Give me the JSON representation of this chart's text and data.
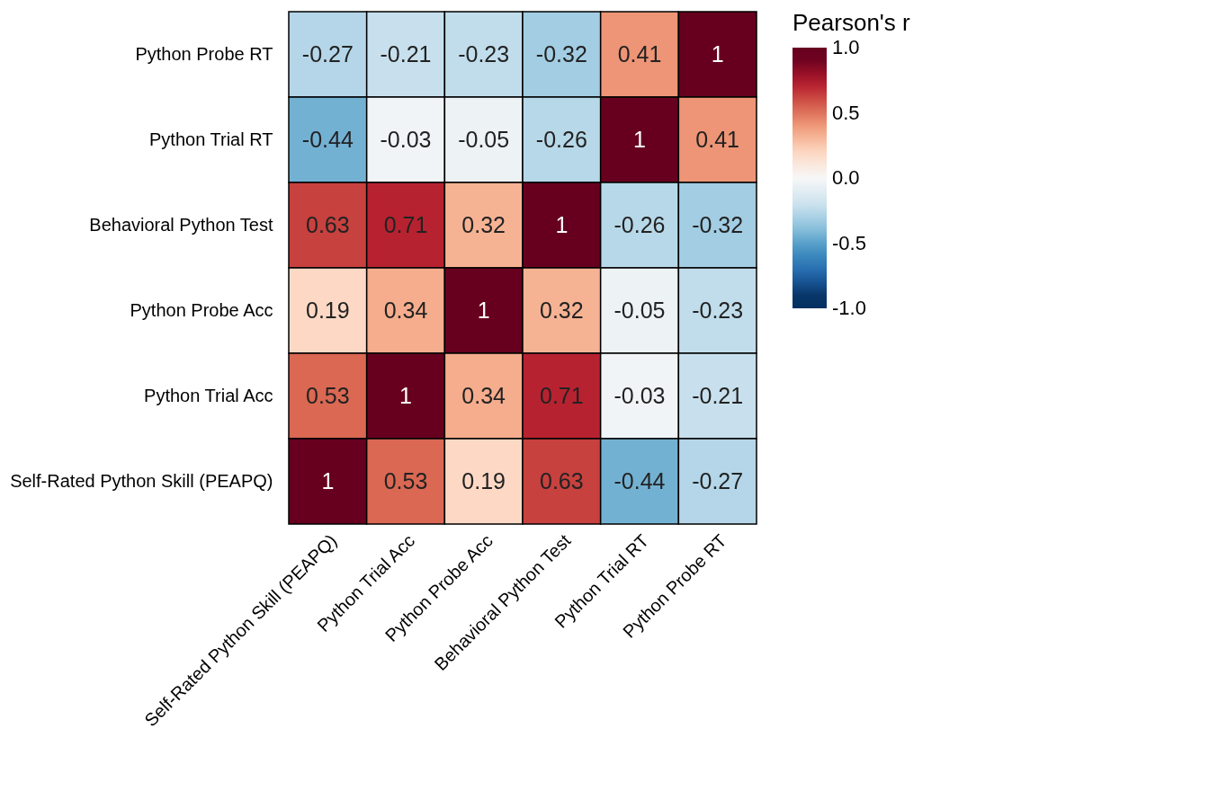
{
  "chart_data": {
    "type": "heatmap",
    "legend_title": "Pearson's r",
    "categories": [
      "Self-Rated Python Skill (PEAPQ)",
      "Python Trial Acc",
      "Python Probe Acc",
      "Behavioral Python Test",
      "Python Trial RT",
      "Python Probe RT"
    ],
    "y_categories": [
      "Python Probe RT",
      "Python Trial RT",
      "Behavioral Python Test",
      "Python Probe Acc",
      "Python Trial Acc",
      "Self-Rated Python Skill (PEAPQ)"
    ],
    "cells": [
      [
        -0.27,
        -0.21,
        -0.23,
        -0.32,
        0.41,
        1
      ],
      [
        -0.44,
        -0.03,
        -0.05,
        -0.26,
        1,
        0.41
      ],
      [
        0.63,
        0.71,
        0.32,
        1,
        -0.26,
        -0.32
      ],
      [
        0.19,
        0.34,
        1,
        0.32,
        -0.05,
        -0.23
      ],
      [
        0.53,
        1,
        0.34,
        0.71,
        -0.03,
        -0.21
      ],
      [
        1,
        0.53,
        0.19,
        0.63,
        -0.44,
        -0.27
      ]
    ],
    "clim": [
      -1,
      1
    ],
    "cticks": [
      {
        "value": 1,
        "label": "1.0"
      },
      {
        "value": 0.5,
        "label": "0.5"
      },
      {
        "value": 0,
        "label": "0.0"
      },
      {
        "value": -0.5,
        "label": "-0.5"
      },
      {
        "value": -1,
        "label": "-1.0"
      }
    ],
    "data_labels": true
  }
}
